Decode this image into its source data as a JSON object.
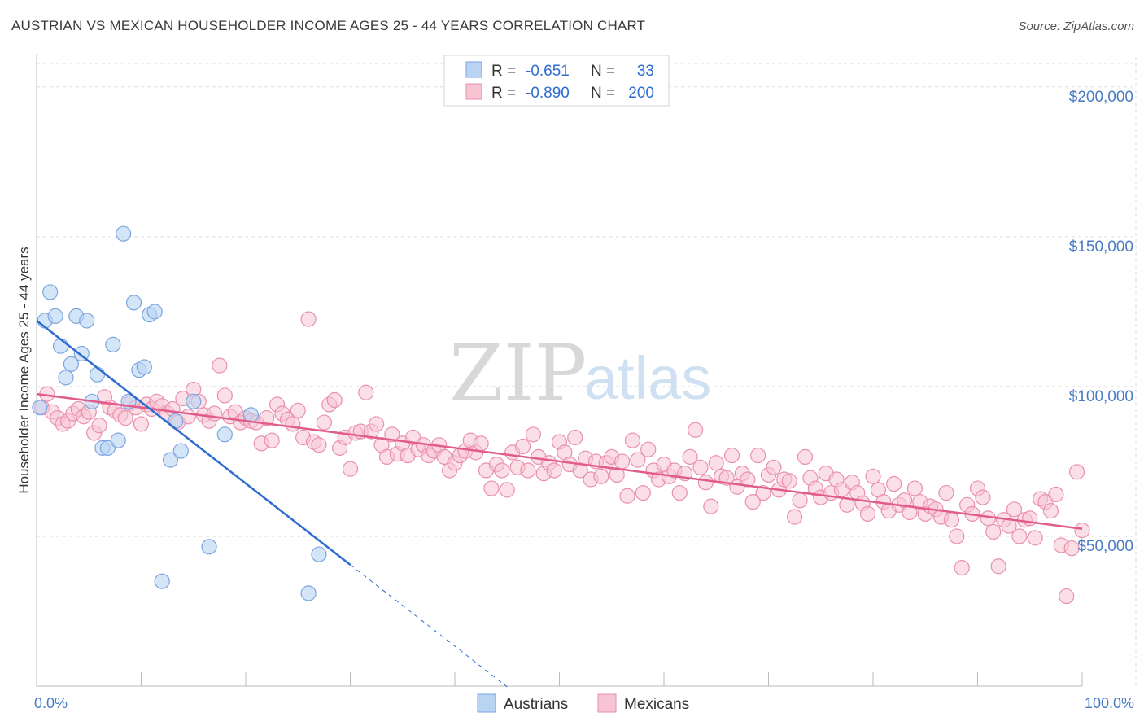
{
  "title": "AUSTRIAN VS MEXICAN HOUSEHOLDER INCOME AGES 25 - 44 YEARS CORRELATION CHART",
  "source": "Source: ZipAtlas.com",
  "watermark": {
    "zip": "ZIP",
    "atlas": "atlas"
  },
  "colors": {
    "austrians_fill": "#b9d3f3",
    "austrians_stroke": "#7aa6e0",
    "austrians_line": "#2f6ccf",
    "mexicans_fill": "#f7c4d3",
    "mexicans_stroke": "#ea8fae",
    "mexicans_line": "#e25c8a",
    "grid": "#dddddd",
    "tick_label": "#4a7cc4"
  },
  "legend": {
    "rows": [
      {
        "r_label": "R =",
        "r_value": "-0.651",
        "n_label": "N =",
        "n_value": "33"
      },
      {
        "r_label": "R =",
        "r_value": "-0.890",
        "n_label": "N =",
        "n_value": "200"
      }
    ]
  },
  "bottom_legend": {
    "austrians": "Austrians",
    "mexicans": "Mexicans"
  },
  "chart_data": {
    "type": "scatter",
    "title": "AUSTRIAN VS MEXICAN HOUSEHOLDER INCOME AGES 25 - 44 YEARS CORRELATION CHART",
    "xlabel": "",
    "ylabel": "Householder Income Ages 25 - 44 years",
    "xlim": [
      0,
      100
    ],
    "ylim": [
      0,
      210000
    ],
    "x_tick_labels": [
      "0.0%",
      "100.0%"
    ],
    "y_ticks": [
      50000,
      100000,
      150000,
      200000
    ],
    "y_tick_labels": [
      "$50,000",
      "$100,000",
      "$150,000",
      "$200,000"
    ],
    "grid": true,
    "legend_position": "top-center",
    "series": [
      {
        "name": "Austrians",
        "r": -0.651,
        "n": 33,
        "trend": {
          "x0": 0,
          "y0": 122000,
          "x1": 30,
          "y1": 40500,
          "dashed_to_x": 45
        },
        "points": [
          [
            0.3,
            93000
          ],
          [
            0.8,
            122000
          ],
          [
            1.3,
            131500
          ],
          [
            1.8,
            123500
          ],
          [
            2.3,
            113500
          ],
          [
            2.8,
            103000
          ],
          [
            3.3,
            107500
          ],
          [
            3.8,
            123500
          ],
          [
            4.3,
            111000
          ],
          [
            4.8,
            122000
          ],
          [
            5.3,
            95000
          ],
          [
            5.8,
            104000
          ],
          [
            6.3,
            79500
          ],
          [
            6.8,
            79500
          ],
          [
            7.3,
            114000
          ],
          [
            7.8,
            82000
          ],
          [
            8.3,
            151000
          ],
          [
            8.8,
            95000
          ],
          [
            9.3,
            128000
          ],
          [
            9.8,
            105500
          ],
          [
            10.3,
            106500
          ],
          [
            10.8,
            124000
          ],
          [
            11.3,
            125000
          ],
          [
            12.0,
            35000
          ],
          [
            12.8,
            75500
          ],
          [
            13.3,
            88500
          ],
          [
            13.8,
            78500
          ],
          [
            15.0,
            95000
          ],
          [
            16.5,
            46500
          ],
          [
            18.0,
            84000
          ],
          [
            20.5,
            90500
          ],
          [
            26.0,
            31000
          ],
          [
            27.0,
            44000
          ]
        ]
      },
      {
        "name": "Mexicans",
        "r": -0.89,
        "n": 200,
        "trend": {
          "x0": 0,
          "y0": 97500,
          "x1": 100,
          "y1": 52500
        },
        "points": [
          [
            0.5,
            93000
          ],
          [
            1.0,
            97500
          ],
          [
            1.5,
            91500
          ],
          [
            2.0,
            89500
          ],
          [
            2.5,
            87500
          ],
          [
            3.0,
            88500
          ],
          [
            3.5,
            91000
          ],
          [
            4.0,
            92500
          ],
          [
            4.5,
            90000
          ],
          [
            5.0,
            91500
          ],
          [
            5.5,
            84500
          ],
          [
            6.0,
            87000
          ],
          [
            6.5,
            96500
          ],
          [
            7.0,
            93000
          ],
          [
            7.5,
            92000
          ],
          [
            8.0,
            90500
          ],
          [
            8.5,
            89500
          ],
          [
            9.0,
            94500
          ],
          [
            9.5,
            93000
          ],
          [
            10.0,
            87500
          ],
          [
            10.5,
            94000
          ],
          [
            11.0,
            92500
          ],
          [
            11.5,
            95000
          ],
          [
            12.0,
            93500
          ],
          [
            12.5,
            91000
          ],
          [
            13.0,
            92500
          ],
          [
            13.5,
            88000
          ],
          [
            14.0,
            96000
          ],
          [
            14.5,
            90000
          ],
          [
            15.0,
            99000
          ],
          [
            15.5,
            95000
          ],
          [
            16.0,
            90500
          ],
          [
            16.5,
            88500
          ],
          [
            17.0,
            91000
          ],
          [
            17.5,
            107000
          ],
          [
            18.0,
            97000
          ],
          [
            18.5,
            90000
          ],
          [
            19.0,
            91500
          ],
          [
            19.5,
            88000
          ],
          [
            20.0,
            89500
          ],
          [
            20.5,
            88500
          ],
          [
            21.0,
            88000
          ],
          [
            21.5,
            81000
          ],
          [
            22.0,
            89500
          ],
          [
            22.5,
            82000
          ],
          [
            23.0,
            94000
          ],
          [
            23.5,
            91000
          ],
          [
            24.0,
            89000
          ],
          [
            24.5,
            87500
          ],
          [
            25.0,
            92000
          ],
          [
            25.5,
            83000
          ],
          [
            26.0,
            122500
          ],
          [
            26.5,
            81500
          ],
          [
            27.0,
            80500
          ],
          [
            27.5,
            88000
          ],
          [
            28.0,
            94000
          ],
          [
            28.5,
            95500
          ],
          [
            29.0,
            79500
          ],
          [
            29.5,
            83000
          ],
          [
            30.0,
            72500
          ],
          [
            30.5,
            84500
          ],
          [
            31.0,
            85000
          ],
          [
            31.5,
            98000
          ],
          [
            32.0,
            85000
          ],
          [
            32.5,
            87500
          ],
          [
            33.0,
            80500
          ],
          [
            33.5,
            76500
          ],
          [
            34.0,
            84000
          ],
          [
            34.5,
            77500
          ],
          [
            35.0,
            81000
          ],
          [
            35.5,
            77000
          ],
          [
            36.0,
            83000
          ],
          [
            36.5,
            79000
          ],
          [
            37.0,
            80500
          ],
          [
            37.5,
            77000
          ],
          [
            38.0,
            78500
          ],
          [
            38.5,
            80500
          ],
          [
            39.0,
            76500
          ],
          [
            39.5,
            72000
          ],
          [
            40.0,
            74500
          ],
          [
            40.5,
            77000
          ],
          [
            41.0,
            78500
          ],
          [
            41.5,
            82000
          ],
          [
            42.0,
            78000
          ],
          [
            42.5,
            81000
          ],
          [
            43.0,
            72000
          ],
          [
            43.5,
            66000
          ],
          [
            44.0,
            74000
          ],
          [
            44.5,
            72000
          ],
          [
            45.0,
            65500
          ],
          [
            45.5,
            78000
          ],
          [
            46.0,
            73000
          ],
          [
            46.5,
            80000
          ],
          [
            47.0,
            72000
          ],
          [
            47.5,
            84000
          ],
          [
            48.0,
            76500
          ],
          [
            48.5,
            71000
          ],
          [
            49.0,
            74500
          ],
          [
            49.5,
            72000
          ],
          [
            50.0,
            81500
          ],
          [
            50.5,
            78000
          ],
          [
            51.0,
            74000
          ],
          [
            51.5,
            83000
          ],
          [
            52.0,
            72000
          ],
          [
            52.5,
            76000
          ],
          [
            53.0,
            69000
          ],
          [
            53.5,
            75000
          ],
          [
            54.0,
            70000
          ],
          [
            54.5,
            74500
          ],
          [
            55.0,
            76500
          ],
          [
            55.5,
            70500
          ],
          [
            56.0,
            75000
          ],
          [
            56.5,
            63500
          ],
          [
            57.0,
            82000
          ],
          [
            57.5,
            75500
          ],
          [
            58.0,
            64500
          ],
          [
            58.5,
            79000
          ],
          [
            59.0,
            72000
          ],
          [
            59.5,
            69000
          ],
          [
            60.0,
            74000
          ],
          [
            60.5,
            70000
          ],
          [
            61.0,
            72000
          ],
          [
            61.5,
            64500
          ],
          [
            62.0,
            71000
          ],
          [
            62.5,
            76500
          ],
          [
            63.0,
            85500
          ],
          [
            63.5,
            73000
          ],
          [
            64.0,
            68000
          ],
          [
            64.5,
            60000
          ],
          [
            65.0,
            74500
          ],
          [
            65.5,
            70000
          ],
          [
            66.0,
            69500
          ],
          [
            66.5,
            77000
          ],
          [
            67.0,
            66500
          ],
          [
            67.5,
            71000
          ],
          [
            68.0,
            69000
          ],
          [
            68.5,
            61500
          ],
          [
            69.0,
            77000
          ],
          [
            69.5,
            64500
          ],
          [
            70.0,
            70500
          ],
          [
            70.5,
            73000
          ],
          [
            71.0,
            65500
          ],
          [
            71.5,
            69000
          ],
          [
            72.0,
            68500
          ],
          [
            72.5,
            56500
          ],
          [
            73.0,
            62000
          ],
          [
            73.5,
            76500
          ],
          [
            74.0,
            69500
          ],
          [
            74.5,
            66000
          ],
          [
            75.0,
            63000
          ],
          [
            75.5,
            71000
          ],
          [
            76.0,
            64500
          ],
          [
            76.5,
            69000
          ],
          [
            77.0,
            65500
          ],
          [
            77.5,
            60500
          ],
          [
            78.0,
            68000
          ],
          [
            78.5,
            64500
          ],
          [
            79.0,
            61000
          ],
          [
            79.5,
            57500
          ],
          [
            80.0,
            70000
          ],
          [
            80.5,
            65500
          ],
          [
            81.0,
            61500
          ],
          [
            81.5,
            58500
          ],
          [
            82.0,
            67500
          ],
          [
            82.5,
            60500
          ],
          [
            83.0,
            62000
          ],
          [
            83.5,
            58000
          ],
          [
            84.0,
            66000
          ],
          [
            84.5,
            61500
          ],
          [
            85.0,
            57500
          ],
          [
            85.5,
            60000
          ],
          [
            86.0,
            59000
          ],
          [
            86.5,
            56500
          ],
          [
            87.0,
            64500
          ],
          [
            87.5,
            55500
          ],
          [
            88.0,
            50000
          ],
          [
            88.5,
            39500
          ],
          [
            89.0,
            60500
          ],
          [
            89.5,
            57500
          ],
          [
            90.0,
            66000
          ],
          [
            90.5,
            63000
          ],
          [
            91.0,
            56000
          ],
          [
            91.5,
            51500
          ],
          [
            92.0,
            40000
          ],
          [
            92.5,
            55500
          ],
          [
            93.0,
            53500
          ],
          [
            93.5,
            59000
          ],
          [
            94.0,
            50000
          ],
          [
            94.5,
            55500
          ],
          [
            95.0,
            56000
          ],
          [
            95.5,
            49500
          ],
          [
            96.0,
            62500
          ],
          [
            96.5,
            61500
          ],
          [
            97.0,
            58500
          ],
          [
            97.5,
            64000
          ],
          [
            98.0,
            47000
          ],
          [
            98.5,
            30000
          ],
          [
            99.0,
            46000
          ],
          [
            99.5,
            71500
          ],
          [
            100.0,
            52000
          ]
        ]
      }
    ]
  }
}
